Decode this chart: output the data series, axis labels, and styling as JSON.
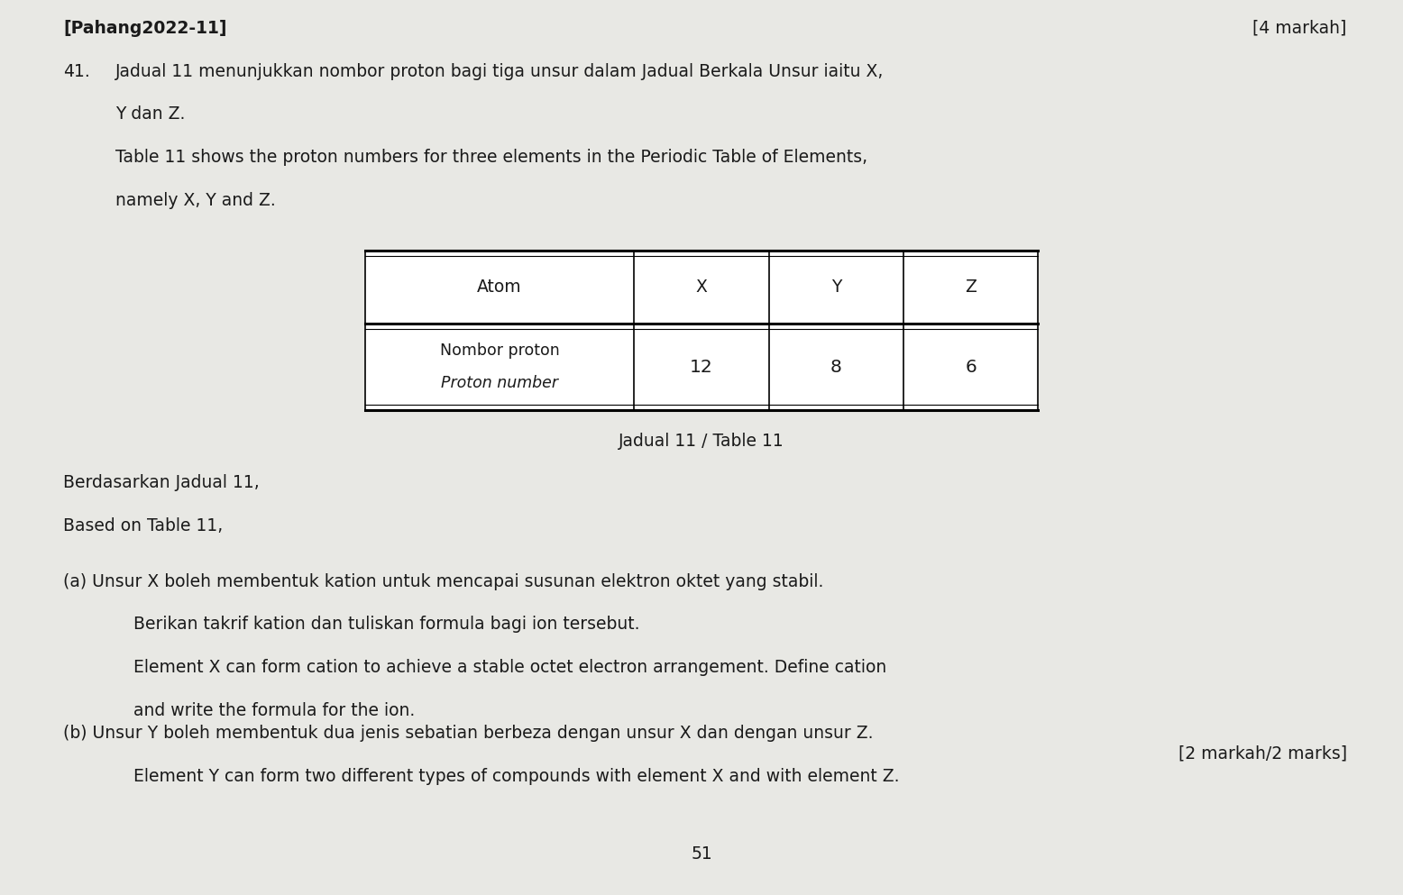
{
  "bg_color": "#e8e8e4",
  "text_color": "#1a1a1a",
  "page_width": 15.56,
  "page_height": 9.93,
  "header_left": "[Pahang2022-11]",
  "header_right": "[4 markah]",
  "question_number": "41.",
  "q_line1_malay": "Jadual 11 menunjukkan nombor proton bagi tiga unsur dalam Jadual Berkala Unsur iaitu X,",
  "q_line2_malay": "Y dan Z.",
  "q_line1_english": "Table 11 shows the proton numbers for three elements in the Periodic Table of Elements,",
  "q_line2_english": "namely X, Y and Z.",
  "table_caption": "Jadual 11 / Table 11",
  "table_headers": [
    "Atom",
    "X",
    "Y",
    "Z"
  ],
  "table_row1_label_bold": "Nombor proton",
  "table_row1_label_italic": "Proton number",
  "table_row1_values": [
    "12",
    "8",
    "6"
  ],
  "berdasarkan_line1": "Berdasarkan Jadual 11,",
  "berdasarkan_line2": "Based on Table 11,",
  "part_a_line1": "(a) Unsur X boleh membentuk kation untuk mencapai susunan elektron oktet yang stabil.",
  "part_a_line2": "Berikan takrif kation dan tuliskan formula bagi ion tersebut.",
  "part_a_line3": "Element X can form cation to achieve a stable octet electron arrangement. Define cation",
  "part_a_line4": "and write the formula for the ion.",
  "part_a_marks": "[2 markah/2 marks]",
  "part_b_line1": "(b) Unsur Y boleh membentuk dua jenis sebatian berbeza dengan unsur X dan dengan unsur Z.",
  "part_b_line2": "Element Y can form two different types of compounds with element X and with element Z.",
  "page_number": "51"
}
